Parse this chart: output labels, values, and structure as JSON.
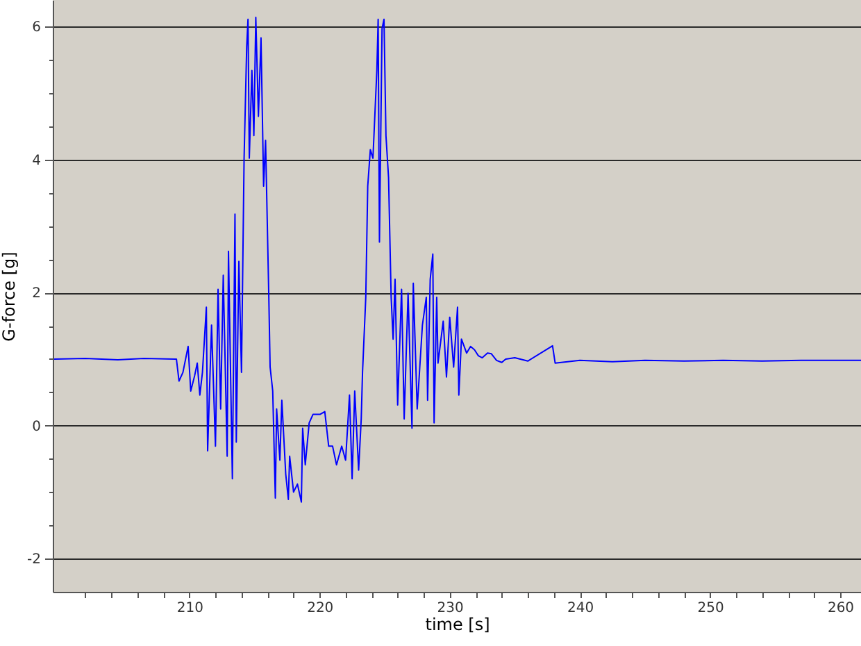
{
  "chart_data": {
    "type": "line",
    "xlabel": "time [s]",
    "ylabel": "G-force [g]",
    "color": "#0000ff",
    "grid": "y",
    "xlim": [
      199.5,
      261.6
    ],
    "ylim": [
      -2.5,
      6.4
    ],
    "xticks": [
      {
        "value": 202,
        "label": null
      },
      {
        "value": 204,
        "label": null
      },
      {
        "value": 206,
        "label": null
      },
      {
        "value": 208,
        "label": null
      },
      210,
      {
        "value": 212,
        "label": null
      },
      {
        "value": 214,
        "label": null
      },
      {
        "value": 216,
        "label": null
      },
      {
        "value": 218,
        "label": null
      },
      220,
      {
        "value": 222,
        "label": null
      },
      {
        "value": 224,
        "label": null
      },
      {
        "value": 226,
        "label": null
      },
      {
        "value": 228,
        "label": null
      },
      230,
      {
        "value": 232,
        "label": null
      },
      {
        "value": 234,
        "label": null
      },
      {
        "value": 236,
        "label": null
      },
      {
        "value": 238,
        "label": null
      },
      240,
      {
        "value": 242,
        "label": null
      },
      {
        "value": 244,
        "label": null
      },
      {
        "value": 246,
        "label": null
      },
      {
        "value": 248,
        "label": null
      },
      250,
      {
        "value": 252,
        "label": null
      },
      {
        "value": 254,
        "label": null
      },
      {
        "value": 256,
        "label": null
      },
      {
        "value": 258,
        "label": null
      },
      260
    ],
    "yticks": [
      -2,
      {
        "value": -1.5,
        "label": null
      },
      {
        "value": -1,
        "label": null
      },
      {
        "value": -0.5,
        "label": null
      },
      0,
      {
        "value": 0.5,
        "label": null
      },
      {
        "value": 1,
        "label": null
      },
      {
        "value": 1.5,
        "label": null
      },
      2,
      {
        "value": 2.5,
        "label": null
      },
      {
        "value": 3,
        "label": null
      },
      {
        "value": 3.5,
        "label": null
      },
      4,
      {
        "value": 4.5,
        "label": null
      },
      {
        "value": 5,
        "label": null
      },
      {
        "value": 5.5,
        "label": null
      },
      6
    ],
    "x": [
      199.6,
      202.0,
      204.5,
      206.5,
      208.9,
      209.0,
      209.2,
      209.5,
      209.9,
      210.1,
      210.4,
      210.6,
      210.8,
      211.0,
      211.3,
      211.4,
      211.7,
      212.0,
      212.2,
      212.4,
      212.6,
      212.9,
      213.0,
      213.3,
      213.5,
      213.6,
      213.8,
      214.0,
      214.2,
      214.4,
      214.5,
      214.6,
      214.8,
      214.95,
      215.1,
      215.3,
      215.5,
      215.7,
      215.85,
      216.1,
      216.2,
      216.4,
      216.6,
      216.7,
      216.95,
      217.1,
      217.4,
      217.6,
      217.7,
      218.0,
      218.3,
      218.6,
      218.7,
      218.9,
      219.2,
      219.5,
      220.05,
      220.4,
      220.7,
      221.0,
      221.3,
      221.7,
      222.0,
      222.3,
      222.5,
      222.7,
      223.0,
      223.2,
      223.3,
      223.55,
      223.7,
      223.9,
      224.1,
      224.4,
      224.5,
      224.6,
      224.8,
      224.95,
      225.1,
      225.3,
      225.5,
      225.65,
      225.8,
      226.0,
      226.3,
      226.5,
      226.8,
      227.1,
      227.2,
      227.5,
      227.9,
      228.2,
      228.3,
      228.5,
      228.7,
      228.8,
      229.0,
      229.1,
      229.5,
      229.75,
      230.0,
      230.3,
      230.6,
      230.7,
      230.9,
      231.3,
      231.6,
      231.9,
      232.2,
      232.5,
      232.9,
      233.2,
      233.6,
      234.0,
      234.3,
      235.0,
      236.0,
      237.9,
      238.1,
      240.0,
      242.5,
      245.0,
      248.0,
      251.0,
      254.0,
      257.0,
      261.6
    ],
    "values": [
      1.0,
      1.01,
      0.99,
      1.01,
      1.0,
      1.0,
      0.67,
      0.8,
      1.19,
      0.52,
      0.75,
      0.94,
      0.46,
      0.8,
      1.78,
      -0.38,
      1.51,
      -0.31,
      2.05,
      0.25,
      2.26,
      -0.46,
      2.62,
      -0.8,
      3.18,
      -0.25,
      2.47,
      0.8,
      4.02,
      5.7,
      6.11,
      4.02,
      5.34,
      4.36,
      6.14,
      4.65,
      5.83,
      3.6,
      4.29,
      1.93,
      0.88,
      0.52,
      -1.09,
      0.25,
      -0.52,
      0.38,
      -0.73,
      -1.11,
      -0.46,
      -1.0,
      -0.88,
      -1.15,
      -0.04,
      -0.59,
      0.04,
      0.17,
      0.17,
      0.21,
      -0.31,
      -0.31,
      -0.59,
      -0.31,
      -0.52,
      0.46,
      -0.8,
      0.52,
      -0.67,
      0.1,
      0.8,
      1.93,
      3.6,
      4.15,
      4.02,
      5.34,
      6.11,
      2.76,
      5.97,
      6.11,
      4.36,
      3.73,
      1.93,
      1.3,
      2.2,
      0.31,
      2.05,
      0.1,
      1.99,
      -0.04,
      2.14,
      0.25,
      1.51,
      1.93,
      0.38,
      2.2,
      2.58,
      0.04,
      1.93,
      0.94,
      1.57,
      0.73,
      1.63,
      0.88,
      1.78,
      0.46,
      1.3,
      1.09,
      1.19,
      1.14,
      1.05,
      1.02,
      1.09,
      1.08,
      0.98,
      0.95,
      1.0,
      1.02,
      0.97,
      1.2,
      0.94,
      0.98,
      0.96,
      0.98,
      0.97,
      0.98,
      0.97,
      0.98,
      0.98
    ]
  }
}
